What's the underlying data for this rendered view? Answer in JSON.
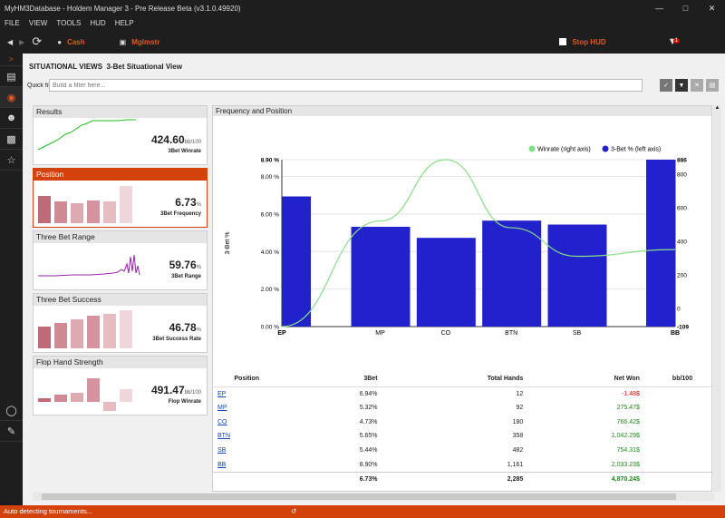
{
  "window": {
    "title": "MyHM3Database - Holdem Manager 3 - Pre Release Beta (v3.1.0.49920)"
  },
  "menu": [
    "FILE",
    "VIEW",
    "TOOLS",
    "HUD",
    "HELP"
  ],
  "toolbar": {
    "cash": "Cash",
    "player": "Mglmstr",
    "stop_hud": "Stop HUD",
    "badge": "1"
  },
  "page": {
    "heading": "SITUATIONAL VIEWS",
    "subheading": "3-Bet Situational View",
    "filter_label": "Quick filt",
    "filter_placeholder": "Build a filter here..."
  },
  "cards": [
    {
      "title": "Results",
      "value": "424.60",
      "unit": "bb/100",
      "label": "3Bet Winrate"
    },
    {
      "title": "Position",
      "value": "6.73",
      "unit": "%",
      "label": "3Bet Frequency"
    },
    {
      "title": "Three Bet Range",
      "value": "59.76",
      "unit": "%",
      "label": "3Bet Range"
    },
    {
      "title": "Three Bet Success",
      "value": "46.78",
      "unit": "%",
      "label": "3Bet Success Rate"
    },
    {
      "title": "Flop Hand Strength",
      "value": "491.47",
      "unit": "bb/100",
      "label": "Flop Winrate"
    }
  ],
  "chart_panel_title": "Frequency and Position",
  "chart_data": {
    "type": "bar",
    "categories": [
      "EP",
      "MP",
      "CO",
      "BTN",
      "SB",
      "BB"
    ],
    "series": [
      {
        "name": "3-Bet % (left axis)",
        "values": [
          6.94,
          5.32,
          4.73,
          5.65,
          5.44,
          8.9
        ],
        "color": "#2222cc"
      },
      {
        "name": "Winrate (right axis)",
        "values": [
          -109,
          520,
          886,
          480,
          310,
          350
        ],
        "color": "#88dd88"
      }
    ],
    "ylabel": "3-Bet %",
    "ylim": [
      0,
      8.9
    ],
    "y_ticks": [
      "0.00 %",
      "2.00 %",
      "4.00 %",
      "6.00 %",
      "8.00 %",
      "8.90 %"
    ],
    "y2lim": [
      -109,
      886
    ],
    "y2_ticks": [
      "-109",
      "0",
      "200",
      "400",
      "600",
      "800",
      "886"
    ],
    "legend": "top-right"
  },
  "table": {
    "headers": [
      "Position",
      "3Bet",
      "Total Hands",
      "Net Won",
      "bb/100"
    ],
    "rows": [
      [
        "EP",
        "6.94%",
        "12",
        "-1.48$"
      ],
      [
        "MP",
        "5.32%",
        "92",
        "275.47$"
      ],
      [
        "CO",
        "4.73%",
        "180",
        "766.42$"
      ],
      [
        "BTN",
        "5.65%",
        "358",
        "1,042.29$"
      ],
      [
        "SB",
        "5.44%",
        "482",
        "754.31$"
      ],
      [
        "BB",
        "8.90%",
        "1,161",
        "2,033.23$"
      ]
    ],
    "total": [
      "",
      "6.73%",
      "2,285",
      "4,870.24$"
    ]
  },
  "status": "Auto detecting tournaments..."
}
